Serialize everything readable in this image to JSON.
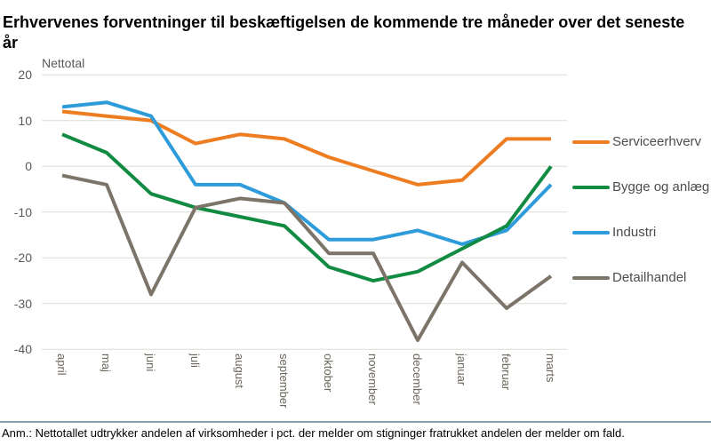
{
  "header": {
    "title": "Erhvervenes forventninger til beskæftigelsen de kommende tre måneder over det seneste år"
  },
  "chart_data": {
    "type": "line",
    "title": "Erhvervenes forventninger til beskæftigelsen de kommende tre måneder over det seneste år",
    "ylabel": "Nettotal",
    "xlabel": "",
    "ylim": [
      -40,
      20
    ],
    "yticks": [
      20,
      10,
      0,
      -10,
      -20,
      -30,
      -40
    ],
    "grid": true,
    "legend_position": "right",
    "categories": [
      "april",
      "maj",
      "juni",
      "juli",
      "august",
      "september",
      "oktober",
      "november",
      "december",
      "januar",
      "februar",
      "marts"
    ],
    "series": [
      {
        "name": "Serviceerhverv",
        "color": "#EE7D22",
        "values": [
          12,
          11,
          10,
          5,
          7,
          6,
          2,
          -1,
          -4,
          -3,
          6,
          6
        ]
      },
      {
        "name": "Bygge og anlæg",
        "color": "#118B41",
        "values": [
          7,
          3,
          -6,
          -9,
          -11,
          -13,
          -22,
          -25,
          -23,
          -18,
          -13,
          0
        ]
      },
      {
        "name": "Industri",
        "color": "#2E9CDB",
        "values": [
          13,
          14,
          11,
          -4,
          -4,
          -8,
          -16,
          -16,
          -14,
          -17,
          -14,
          -4
        ]
      },
      {
        "name": "Detailhandel",
        "color": "#7C7468",
        "values": [
          -2,
          -4,
          -28,
          -9,
          -7,
          -8,
          -19,
          -19,
          -38,
          -21,
          -31,
          -24
        ]
      }
    ]
  },
  "footer": {
    "note": "Anm.: Nettotallet udtrykker andelen af virksomheder i pct. der melder om stigninger fratrukket andelen der melder om fald.",
    "separator_color": "#86A0AC"
  }
}
